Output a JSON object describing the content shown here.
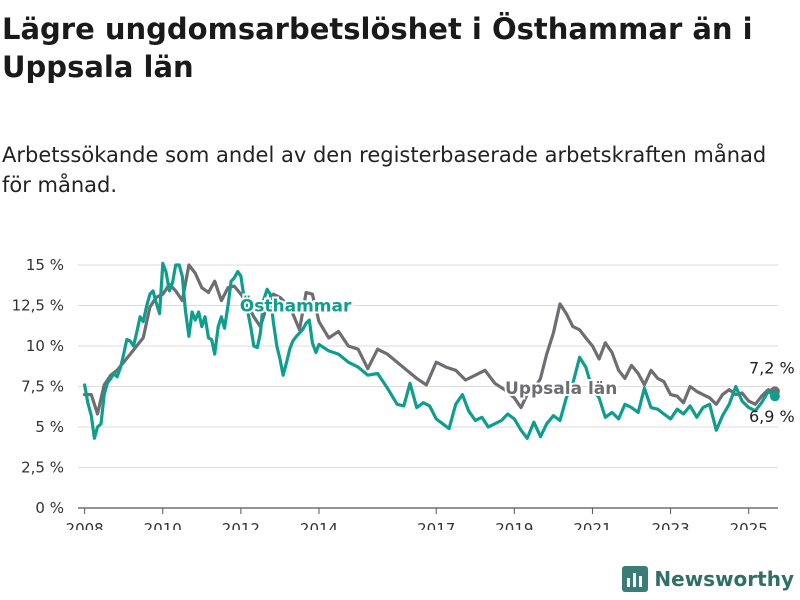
{
  "header": {
    "title": "Lägre ungdomsarbetslöshet i Östhammar än i Uppsala län",
    "subtitle": "Arbetssökande som andel av den registerbaserade arbetskraften månad för månad."
  },
  "brand": {
    "name": "Newsworthy",
    "icon": "bar-chart-logo-icon",
    "color": "#3a7d74"
  },
  "colors": {
    "osthammar": "#0f9e8e",
    "uppsala": "#6e6e72",
    "grid": "#dddddd",
    "axis": "#555555"
  },
  "chart_data": {
    "type": "line",
    "title": "Lägre ungdomsarbetslöshet i Östhammar än i Uppsala län",
    "xlabel": "",
    "ylabel": "",
    "ylim": [
      0,
      15
    ],
    "xlim": [
      2007.83,
      2025.75
    ],
    "yticks": [
      {
        "value": 0,
        "label": "0 %"
      },
      {
        "value": 2.5,
        "label": "2,5 %"
      },
      {
        "value": 5,
        "label": "5 %"
      },
      {
        "value": 7.5,
        "label": "7,5 %"
      },
      {
        "value": 10,
        "label": "10 %"
      },
      {
        "value": 12.5,
        "label": "12,5 %"
      },
      {
        "value": 15,
        "label": "15 %"
      }
    ],
    "xticks": [
      {
        "value": 2008,
        "label": "2008"
      },
      {
        "value": 2010,
        "label": "2010"
      },
      {
        "value": 2012,
        "label": "2012"
      },
      {
        "value": 2014,
        "label": "2014"
      },
      {
        "value": 2017,
        "label": "2017"
      },
      {
        "value": 2019,
        "label": "2019"
      },
      {
        "value": 2021,
        "label": "2021"
      },
      {
        "value": 2023,
        "label": "2023"
      },
      {
        "value": 2025,
        "label": "2025"
      }
    ],
    "grid": true,
    "series": [
      {
        "name": "Uppsala län",
        "color": "#6e6e72",
        "end_label": "7,2 %",
        "points": [
          [
            2008.0,
            7.0
          ],
          [
            2008.17,
            7.0
          ],
          [
            2008.33,
            5.8
          ],
          [
            2008.5,
            7.6
          ],
          [
            2008.67,
            8.2
          ],
          [
            2008.83,
            8.5
          ],
          [
            2009.0,
            9.0
          ],
          [
            2009.17,
            9.5
          ],
          [
            2009.33,
            10.0
          ],
          [
            2009.5,
            10.5
          ],
          [
            2009.67,
            12.4
          ],
          [
            2009.83,
            13.0
          ],
          [
            2010.0,
            13.2
          ],
          [
            2010.17,
            13.8
          ],
          [
            2010.33,
            13.4
          ],
          [
            2010.5,
            12.8
          ],
          [
            2010.67,
            15.0
          ],
          [
            2010.83,
            14.5
          ],
          [
            2011.0,
            13.6
          ],
          [
            2011.17,
            13.3
          ],
          [
            2011.33,
            14.0
          ],
          [
            2011.5,
            12.8
          ],
          [
            2011.67,
            13.6
          ],
          [
            2011.83,
            13.7
          ],
          [
            2012.0,
            13.2
          ],
          [
            2012.17,
            12.6
          ],
          [
            2012.33,
            11.8
          ],
          [
            2012.5,
            11.2
          ],
          [
            2012.67,
            12.5
          ],
          [
            2012.83,
            13.2
          ],
          [
            2013.0,
            13.0
          ],
          [
            2013.17,
            12.6
          ],
          [
            2013.33,
            12.0
          ],
          [
            2013.5,
            11.0
          ],
          [
            2013.67,
            13.3
          ],
          [
            2013.83,
            13.2
          ],
          [
            2014.0,
            11.5
          ],
          [
            2014.25,
            10.5
          ],
          [
            2014.5,
            10.9
          ],
          [
            2014.75,
            10.0
          ],
          [
            2015.0,
            9.8
          ],
          [
            2015.25,
            8.6
          ],
          [
            2015.5,
            9.8
          ],
          [
            2015.75,
            9.5
          ],
          [
            2016.0,
            9.0
          ],
          [
            2016.25,
            8.5
          ],
          [
            2016.5,
            8.0
          ],
          [
            2016.75,
            7.6
          ],
          [
            2017.0,
            9.0
          ],
          [
            2017.25,
            8.7
          ],
          [
            2017.5,
            8.5
          ],
          [
            2017.75,
            7.9
          ],
          [
            2018.0,
            8.2
          ],
          [
            2018.25,
            8.5
          ],
          [
            2018.5,
            7.7
          ],
          [
            2018.75,
            7.3
          ],
          [
            2019.0,
            6.8
          ],
          [
            2019.17,
            6.2
          ],
          [
            2019.33,
            7.0
          ],
          [
            2019.5,
            7.3
          ],
          [
            2019.67,
            8.0
          ],
          [
            2019.83,
            9.5
          ],
          [
            2020.0,
            10.8
          ],
          [
            2020.17,
            12.6
          ],
          [
            2020.33,
            12.0
          ],
          [
            2020.5,
            11.2
          ],
          [
            2020.67,
            11.0
          ],
          [
            2020.83,
            10.5
          ],
          [
            2021.0,
            10.0
          ],
          [
            2021.17,
            9.2
          ],
          [
            2021.33,
            10.2
          ],
          [
            2021.5,
            9.6
          ],
          [
            2021.67,
            8.5
          ],
          [
            2021.83,
            8.0
          ],
          [
            2022.0,
            8.8
          ],
          [
            2022.17,
            8.3
          ],
          [
            2022.33,
            7.6
          ],
          [
            2022.5,
            8.5
          ],
          [
            2022.67,
            8.0
          ],
          [
            2022.83,
            7.8
          ],
          [
            2023.0,
            7.0
          ],
          [
            2023.17,
            6.9
          ],
          [
            2023.33,
            6.5
          ],
          [
            2023.5,
            7.5
          ],
          [
            2023.67,
            7.2
          ],
          [
            2023.83,
            7.0
          ],
          [
            2024.0,
            6.8
          ],
          [
            2024.17,
            6.4
          ],
          [
            2024.33,
            7.0
          ],
          [
            2024.5,
            7.3
          ],
          [
            2024.67,
            7.0
          ],
          [
            2024.83,
            7.1
          ],
          [
            2025.0,
            6.6
          ],
          [
            2025.17,
            6.4
          ],
          [
            2025.33,
            6.9
          ],
          [
            2025.5,
            7.3
          ],
          [
            2025.67,
            7.2
          ]
        ]
      },
      {
        "name": "Östhammar",
        "color": "#0f9e8e",
        "end_label": "6,9 %",
        "points": [
          [
            2008.0,
            7.6
          ],
          [
            2008.08,
            6.5
          ],
          [
            2008.17,
            5.7
          ],
          [
            2008.25,
            4.3
          ],
          [
            2008.33,
            5.0
          ],
          [
            2008.42,
            5.2
          ],
          [
            2008.5,
            7.0
          ],
          [
            2008.58,
            7.7
          ],
          [
            2008.67,
            8.0
          ],
          [
            2008.75,
            8.3
          ],
          [
            2008.83,
            8.1
          ],
          [
            2008.92,
            8.7
          ],
          [
            2009.0,
            9.5
          ],
          [
            2009.08,
            10.4
          ],
          [
            2009.17,
            10.3
          ],
          [
            2009.25,
            10.0
          ],
          [
            2009.33,
            10.8
          ],
          [
            2009.42,
            11.8
          ],
          [
            2009.5,
            11.5
          ],
          [
            2009.58,
            12.4
          ],
          [
            2009.67,
            13.2
          ],
          [
            2009.75,
            13.4
          ],
          [
            2009.83,
            12.7
          ],
          [
            2009.92,
            12.0
          ],
          [
            2010.0,
            15.1
          ],
          [
            2010.08,
            14.6
          ],
          [
            2010.17,
            13.4
          ],
          [
            2010.25,
            13.9
          ],
          [
            2010.33,
            15.0
          ],
          [
            2010.42,
            15.0
          ],
          [
            2010.5,
            14.3
          ],
          [
            2010.58,
            12.2
          ],
          [
            2010.67,
            10.6
          ],
          [
            2010.75,
            12.1
          ],
          [
            2010.83,
            11.6
          ],
          [
            2010.92,
            12.1
          ],
          [
            2011.0,
            11.2
          ],
          [
            2011.08,
            11.8
          ],
          [
            2011.17,
            10.5
          ],
          [
            2011.25,
            10.4
          ],
          [
            2011.33,
            9.5
          ],
          [
            2011.42,
            11.2
          ],
          [
            2011.5,
            11.8
          ],
          [
            2011.58,
            11.1
          ],
          [
            2011.67,
            12.5
          ],
          [
            2011.75,
            14.0
          ],
          [
            2011.83,
            14.2
          ],
          [
            2011.92,
            14.6
          ],
          [
            2012.0,
            14.3
          ],
          [
            2012.08,
            13.0
          ],
          [
            2012.17,
            12.2
          ],
          [
            2012.25,
            11.2
          ],
          [
            2012.33,
            10.0
          ],
          [
            2012.42,
            9.9
          ],
          [
            2012.5,
            10.8
          ],
          [
            2012.58,
            12.8
          ],
          [
            2012.67,
            13.5
          ],
          [
            2012.75,
            13.2
          ],
          [
            2012.83,
            11.5
          ],
          [
            2012.92,
            10.0
          ],
          [
            2013.0,
            9.2
          ],
          [
            2013.08,
            8.2
          ],
          [
            2013.17,
            9.0
          ],
          [
            2013.25,
            9.8
          ],
          [
            2013.33,
            10.3
          ],
          [
            2013.42,
            10.6
          ],
          [
            2013.5,
            10.8
          ],
          [
            2013.58,
            11.0
          ],
          [
            2013.67,
            11.4
          ],
          [
            2013.75,
            11.6
          ],
          [
            2013.83,
            10.2
          ],
          [
            2013.92,
            9.6
          ],
          [
            2014.0,
            10.1
          ],
          [
            2014.25,
            9.7
          ],
          [
            2014.5,
            9.5
          ],
          [
            2014.75,
            9.0
          ],
          [
            2015.0,
            8.7
          ],
          [
            2015.25,
            8.2
          ],
          [
            2015.5,
            8.3
          ],
          [
            2015.75,
            7.4
          ],
          [
            2016.0,
            6.4
          ],
          [
            2016.17,
            6.3
          ],
          [
            2016.33,
            7.7
          ],
          [
            2016.5,
            6.2
          ],
          [
            2016.67,
            6.5
          ],
          [
            2016.83,
            6.3
          ],
          [
            2017.0,
            5.5
          ],
          [
            2017.17,
            5.2
          ],
          [
            2017.33,
            4.9
          ],
          [
            2017.5,
            6.4
          ],
          [
            2017.67,
            7.0
          ],
          [
            2017.83,
            6.0
          ],
          [
            2018.0,
            5.4
          ],
          [
            2018.17,
            5.6
          ],
          [
            2018.33,
            5.0
          ],
          [
            2018.5,
            5.2
          ],
          [
            2018.67,
            5.4
          ],
          [
            2018.83,
            5.8
          ],
          [
            2019.0,
            5.5
          ],
          [
            2019.17,
            4.8
          ],
          [
            2019.33,
            4.3
          ],
          [
            2019.5,
            5.3
          ],
          [
            2019.67,
            4.4
          ],
          [
            2019.83,
            5.2
          ],
          [
            2020.0,
            5.7
          ],
          [
            2020.17,
            5.4
          ],
          [
            2020.33,
            6.8
          ],
          [
            2020.5,
            7.7
          ],
          [
            2020.67,
            9.3
          ],
          [
            2020.83,
            8.7
          ],
          [
            2021.0,
            7.3
          ],
          [
            2021.17,
            6.8
          ],
          [
            2021.33,
            5.6
          ],
          [
            2021.5,
            5.9
          ],
          [
            2021.67,
            5.5
          ],
          [
            2021.83,
            6.4
          ],
          [
            2022.0,
            6.2
          ],
          [
            2022.17,
            5.9
          ],
          [
            2022.33,
            7.4
          ],
          [
            2022.5,
            6.2
          ],
          [
            2022.67,
            6.1
          ],
          [
            2022.83,
            5.8
          ],
          [
            2023.0,
            5.5
          ],
          [
            2023.17,
            6.1
          ],
          [
            2023.33,
            5.8
          ],
          [
            2023.5,
            6.3
          ],
          [
            2023.67,
            5.6
          ],
          [
            2023.83,
            6.2
          ],
          [
            2024.0,
            6.4
          ],
          [
            2024.17,
            4.8
          ],
          [
            2024.33,
            5.7
          ],
          [
            2024.5,
            6.4
          ],
          [
            2024.67,
            7.5
          ],
          [
            2024.83,
            6.6
          ],
          [
            2025.0,
            6.2
          ],
          [
            2025.17,
            6.0
          ],
          [
            2025.33,
            6.5
          ],
          [
            2025.5,
            7.2
          ],
          [
            2025.67,
            6.9
          ]
        ]
      }
    ],
    "annotations": [
      {
        "text": "Östhammar",
        "series": "Östhammar",
        "x": 2013.4,
        "y": 12.5
      },
      {
        "text": "Uppsala län",
        "series": "Uppsala län",
        "x": 2020.2,
        "y": 7.4
      }
    ]
  }
}
